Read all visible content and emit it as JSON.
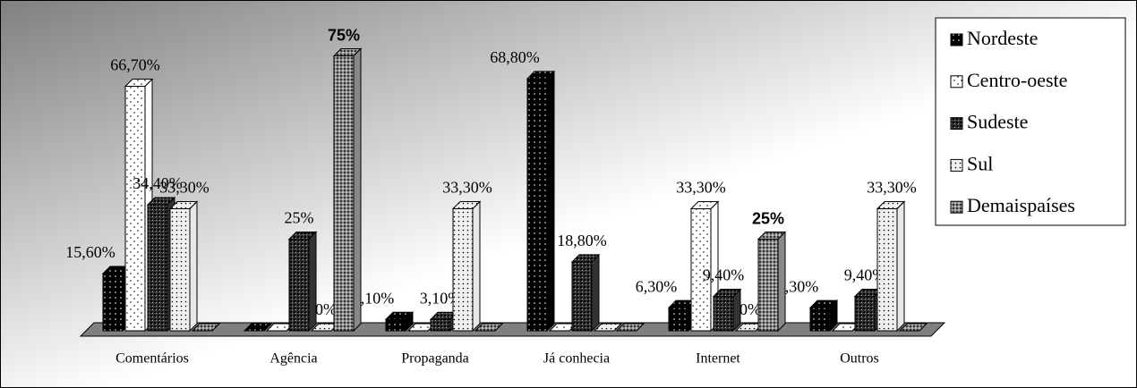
{
  "chart_data": {
    "type": "bar3d",
    "categories": [
      "Comentários",
      "Agência",
      "Propaganda",
      "Já conhecia",
      "Internet",
      "Outros"
    ],
    "series": [
      {
        "name": "Nordeste",
        "color": "#000000",
        "values": [
          15.6,
          0,
          3.1,
          68.8,
          6.3,
          6.3
        ],
        "value_labels": [
          "15,60%",
          null,
          "3,10%",
          "68,80%",
          "6,30%",
          "6,30%"
        ]
      },
      {
        "name": "Centro-oeste",
        "color": "#ffffff",
        "values": [
          66.7,
          0,
          0,
          0,
          33.3,
          0
        ],
        "value_labels": [
          "66,70%",
          null,
          null,
          null,
          "33,30%",
          null
        ]
      },
      {
        "name": "Sudeste",
        "color": "#333333",
        "values": [
          34.4,
          25,
          3.1,
          18.8,
          9.4,
          9.4
        ],
        "value_labels": [
          "34,40%",
          "25%",
          "3,10%",
          "18,80%",
          "9,40%",
          "9,40%"
        ]
      },
      {
        "name": "Sul",
        "color": "#e8e8e8",
        "values": [
          33.3,
          0,
          33.3,
          0,
          0,
          33.3
        ],
        "value_labels": [
          "33,30%",
          "0%",
          "33,30%",
          null,
          "0%",
          "33,30%"
        ]
      },
      {
        "name": "Demaispaíses",
        "color": "#888888",
        "values": [
          0,
          75,
          0,
          0,
          25,
          0
        ],
        "value_labels": [
          null,
          "75%",
          null,
          null,
          "25%",
          null
        ]
      }
    ],
    "legend": "right"
  }
}
